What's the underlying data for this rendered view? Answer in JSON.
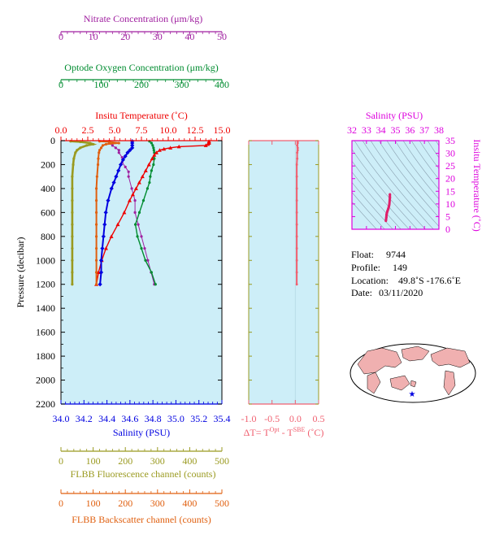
{
  "colors": {
    "nitrate": "#a020a0",
    "oxygen": "#008c30",
    "temperature": "#ee0000",
    "salinity": "#0000e0",
    "fluorescence": "#9a9a20",
    "backscatter": "#e06010",
    "delta_t": "#f06070",
    "ts_axis": "#dd00dd",
    "plot_bg": "#cdeef8",
    "map_land": "#f0b0b0"
  },
  "axes": {
    "nitrate": {
      "label": "Nitrate Concentration (μm/kg)",
      "ticks": [
        "0",
        "10",
        "20",
        "30",
        "40",
        "50"
      ]
    },
    "oxygen": {
      "label": "Optode Oxygen Concentration (μm/kg)",
      "ticks": [
        "0",
        "100",
        "200",
        "300",
        "400"
      ]
    },
    "temperature": {
      "label": "Insitu Temperature (˚C)",
      "ticks": [
        "0.0",
        "2.5",
        "5.0",
        "7.5",
        "10.0",
        "12.5",
        "15.0"
      ]
    },
    "salinity": {
      "label": "Salinity (PSU)",
      "ticks": [
        "34.0",
        "34.2",
        "34.4",
        "34.6",
        "34.8",
        "35.0",
        "35.2",
        "35.4"
      ]
    },
    "pressure": {
      "label": "Pressure (decibar)",
      "ticks": [
        "0",
        "200",
        "400",
        "600",
        "800",
        "1000",
        "1200",
        "1400",
        "1600",
        "1800",
        "2000",
        "2200"
      ]
    },
    "fluorescence": {
      "label": "FLBB Fluorescence channel (counts)",
      "ticks": [
        "0",
        "100",
        "200",
        "300",
        "400",
        "500"
      ]
    },
    "backscatter": {
      "label": "FLBB Backscatter channel (counts)",
      "ticks": [
        "0",
        "100",
        "200",
        "300",
        "400",
        "500"
      ]
    },
    "delta_t": {
      "label_parts": [
        "ΔT= T",
        "Opt",
        " - T",
        "SBE",
        " (˚C)"
      ],
      "ticks": [
        "-1.0",
        "-0.5",
        "0.0",
        "0.5"
      ]
    },
    "ts_salinity": {
      "label": "Salinity (PSU)",
      "ticks": [
        "32",
        "33",
        "34",
        "35",
        "36",
        "37",
        "38"
      ]
    },
    "ts_temperature": {
      "label": "Insitu Temperature (˚C)",
      "ticks": [
        "0",
        "5",
        "10",
        "15",
        "20",
        "25",
        "30",
        "35"
      ]
    }
  },
  "info": {
    "float_label": "Float:",
    "float": "9744",
    "profile_label": "Profile:",
    "profile": "149",
    "location_label": "Location:",
    "location": "49.8˚S  -176.6˚E",
    "date_label": "Date:",
    "date": "03/11/2020"
  },
  "chart_data": [
    {
      "type": "line",
      "name": "profile",
      "ylim": [
        2200,
        0
      ],
      "series": [
        {
          "name": "temperature",
          "xlim": [
            0,
            15
          ],
          "pressure": [
            5,
            10,
            20,
            30,
            40,
            50,
            60,
            70,
            80,
            100,
            120,
            150,
            200,
            250,
            300,
            350,
            400,
            450,
            500,
            600,
            700,
            800,
            900,
            1000,
            1100,
            1200
          ],
          "values": [
            13.8,
            13.8,
            13.8,
            13.7,
            13.5,
            11.0,
            10.2,
            9.6,
            9.2,
            8.9,
            8.7,
            8.5,
            8.2,
            7.9,
            7.6,
            7.3,
            7.0,
            6.7,
            6.4,
            5.9,
            5.3,
            4.7,
            4.2,
            3.8,
            3.5,
            3.3
          ]
        },
        {
          "name": "salinity",
          "xlim": [
            34.0,
            35.4
          ],
          "pressure": [
            5,
            20,
            40,
            60,
            80,
            100,
            130,
            160,
            200,
            250,
            300,
            350,
            400,
            500,
            600,
            700,
            800,
            900,
            1000,
            1100,
            1200
          ],
          "values": [
            34.62,
            34.62,
            34.62,
            34.62,
            34.6,
            34.58,
            34.56,
            34.54,
            34.52,
            34.5,
            34.48,
            34.46,
            34.44,
            34.41,
            34.39,
            34.38,
            34.37,
            34.36,
            34.35,
            34.35,
            34.34
          ]
        },
        {
          "name": "nitrate",
          "xlim": [
            0,
            50
          ],
          "pressure": [
            5,
            20,
            40,
            60,
            80,
            100,
            140,
            180,
            220,
            260,
            300,
            400,
            500,
            600,
            700,
            800,
            900,
            1000,
            1100,
            1200
          ],
          "values": [
            15,
            15,
            16,
            17,
            18,
            18,
            19,
            19,
            20,
            21,
            21,
            22,
            23,
            23,
            24,
            25,
            26,
            27,
            28,
            29
          ]
        },
        {
          "name": "oxygen",
          "xlim": [
            0,
            400
          ],
          "pressure": [
            5,
            20,
            40,
            60,
            80,
            100,
            150,
            200,
            250,
            300,
            350,
            400,
            500,
            600,
            700,
            800,
            900,
            1000,
            1100,
            1200
          ],
          "values": [
            220,
            225,
            228,
            230,
            231,
            232,
            232,
            230,
            225,
            222,
            220,
            215,
            205,
            195,
            185,
            190,
            200,
            210,
            225,
            235
          ]
        },
        {
          "name": "fluorescence",
          "xlim": [
            0,
            500
          ],
          "pressure": [
            5,
            10,
            20,
            30,
            40,
            60,
            80,
            100,
            150,
            200,
            300,
            400,
            500,
            600,
            700,
            800,
            900,
            1000,
            1100,
            1200
          ],
          "values": [
            30,
            60,
            90,
            100,
            80,
            60,
            50,
            45,
            40,
            38,
            35,
            35,
            35,
            35,
            35,
            35,
            35,
            35,
            35,
            35
          ]
        },
        {
          "name": "backscatter",
          "xlim": [
            0,
            500
          ],
          "pressure": [
            5,
            10,
            20,
            30,
            40,
            60,
            80,
            100,
            150,
            200,
            300,
            400,
            500,
            600,
            700,
            800,
            900,
            1000,
            1100,
            1200
          ],
          "values": [
            120,
            150,
            180,
            140,
            130,
            125,
            120,
            118,
            116,
            115,
            112,
            110,
            110,
            110,
            110,
            110,
            110,
            110,
            110,
            110
          ]
        }
      ]
    },
    {
      "type": "line",
      "name": "delta_t",
      "xlim": [
        -1.0,
        0.5
      ],
      "ylim": [
        2200,
        0
      ],
      "series": [
        {
          "name": "delta_t",
          "pressure": [
            5,
            20,
            40,
            60,
            80,
            100,
            150,
            200,
            300,
            400,
            500,
            600,
            700,
            800,
            900,
            1000,
            1100,
            1200
          ],
          "values": [
            0.05,
            0.05,
            0.04,
            0.05,
            0.05,
            0.04,
            0.04,
            0.03,
            0.03,
            0.03,
            0.03,
            0.03,
            0.03,
            0.03,
            0.03,
            0.03,
            0.03,
            0.03
          ]
        }
      ]
    },
    {
      "type": "scatter",
      "name": "ts_diagram",
      "xlim": [
        32,
        38
      ],
      "ylim": [
        0,
        35
      ],
      "series": [
        {
          "name": "ts",
          "salinity": [
            34.62,
            34.62,
            34.58,
            34.54,
            34.5,
            34.46,
            34.44,
            34.41,
            34.39,
            34.37,
            34.35,
            34.34
          ],
          "temperature": [
            13.8,
            12.5,
            9.8,
            8.8,
            8.0,
            7.4,
            7.0,
            6.4,
            5.9,
            4.7,
            3.8,
            3.3
          ]
        }
      ]
    }
  ]
}
